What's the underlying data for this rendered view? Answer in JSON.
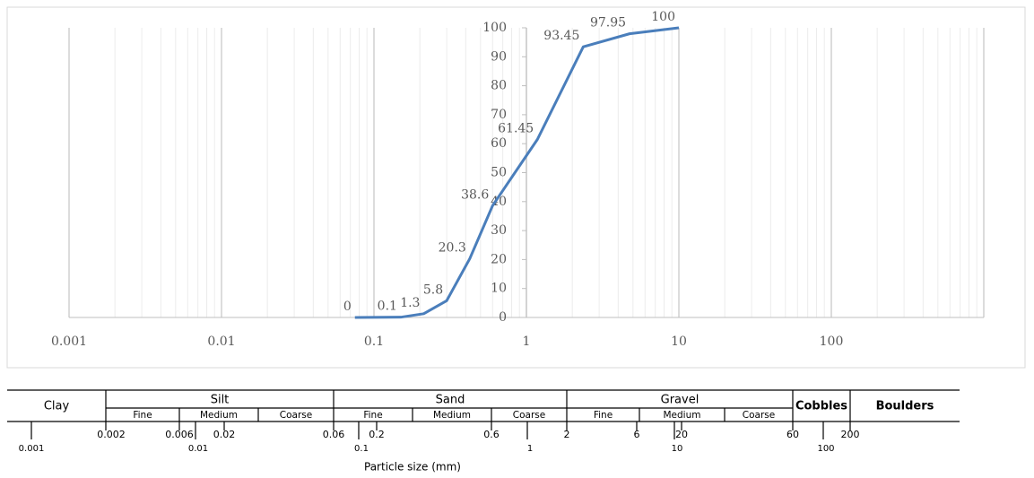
{
  "chart_data": {
    "type": "line",
    "x": [
      0.075,
      0.15,
      0.212,
      0.3,
      0.425,
      0.6,
      1.18,
      2.36,
      4.75,
      10
    ],
    "series": [
      {
        "color": "#4a7ebb",
        "values": [
          0,
          0.1,
          1.3,
          5.8,
          20.3,
          38.6,
          61.45,
          93.45,
          97.95,
          100
        ]
      }
    ],
    "xlim": [
      0.001,
      1000
    ],
    "xticks": [
      0.001,
      0.01,
      0.1,
      1,
      10,
      100
    ],
    "ylim": [
      0,
      100
    ],
    "yticks": [
      0,
      10,
      20,
      30,
      40,
      50,
      60,
      70,
      80,
      90,
      100
    ],
    "log_x": true,
    "grid": true,
    "y_axis_crosses": 1,
    "data_labels": true
  },
  "classification": {
    "groups": [
      "Clay",
      "Silt",
      "Sand",
      "Gravel",
      "Cobbles",
      "Boulders"
    ],
    "subgroups": [
      "Fine",
      "Medium",
      "Coarse",
      "Fine",
      "Medium",
      "Coarse",
      "Fine",
      "Medium",
      "Coarse"
    ],
    "boundaries": [
      "0.002",
      "0.006",
      "0.02",
      "0.06",
      "0.2",
      "0.6",
      "2",
      "6",
      "20",
      "60",
      "200"
    ],
    "scale": [
      "0.001",
      "0.01",
      "0.1",
      "1",
      "10",
      "100"
    ],
    "axis_title": "Particle size (mm)"
  }
}
